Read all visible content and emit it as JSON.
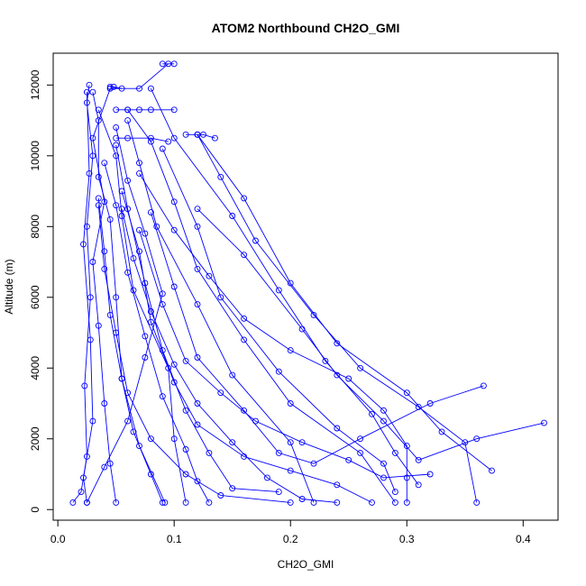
{
  "chart_data": {
    "type": "line",
    "title": "ATOM2 Northbound CH2O_GMI",
    "xlabel": "CH2O_GMI",
    "ylabel": "Altitude (m)",
    "xlim": [
      -0.004,
      0.43
    ],
    "ylim": [
      -300,
      12900
    ],
    "xticks": [
      0.0,
      0.1,
      0.2,
      0.3,
      0.4
    ],
    "xtick_labels": [
      "0.0",
      "0.1",
      "0.2",
      "0.3",
      "0.4"
    ],
    "yticks": [
      0,
      2000,
      4000,
      6000,
      8000,
      10000,
      12000
    ],
    "ytick_labels": [
      "0",
      "2000",
      "4000",
      "6000",
      "8000",
      "10000",
      "12000"
    ],
    "grid": false,
    "legend": "none",
    "marker": "open-circle",
    "color": "#0000ff",
    "series": [
      {
        "points": [
          [
            0.013,
            200
          ],
          [
            0.02,
            500
          ],
          [
            0.025,
            1500
          ],
          [
            0.023,
            3500
          ],
          [
            0.028,
            6000
          ],
          [
            0.025,
            8000
          ],
          [
            0.03,
            10000
          ],
          [
            0.025,
            11500
          ],
          [
            0.027,
            12000
          ]
        ]
      },
      {
        "points": [
          [
            0.025,
            200
          ],
          [
            0.022,
            900
          ],
          [
            0.03,
            2500
          ],
          [
            0.028,
            4800
          ],
          [
            0.022,
            7500
          ],
          [
            0.027,
            9500
          ],
          [
            0.025,
            11800
          ]
        ]
      },
      {
        "points": [
          [
            0.05,
            200
          ],
          [
            0.045,
            1300
          ],
          [
            0.04,
            3000
          ],
          [
            0.035,
            5200
          ],
          [
            0.03,
            7000
          ],
          [
            0.04,
            8700
          ],
          [
            0.03,
            10500
          ],
          [
            0.045,
            11900
          ]
        ]
      },
      {
        "points": [
          [
            0.092,
            200
          ],
          [
            0.07,
            1800
          ],
          [
            0.055,
            3700
          ],
          [
            0.05,
            6000
          ],
          [
            0.045,
            8200
          ],
          [
            0.035,
            9400
          ],
          [
            0.035,
            11000
          ],
          [
            0.03,
            11800
          ]
        ]
      },
      {
        "points": [
          [
            0.11,
            200
          ],
          [
            0.1,
            2000
          ],
          [
            0.095,
            4000
          ],
          [
            0.065,
            6200
          ],
          [
            0.055,
            8300
          ],
          [
            0.05,
            10000
          ],
          [
            0.035,
            11300
          ]
        ]
      },
      {
        "points": [
          [
            0.22,
            200
          ],
          [
            0.2,
            1900
          ],
          [
            0.15,
            3800
          ],
          [
            0.12,
            5800
          ],
          [
            0.085,
            8000
          ],
          [
            0.07,
            9800
          ],
          [
            0.06,
            11000
          ]
        ]
      },
      {
        "points": [
          [
            0.29,
            200
          ],
          [
            0.26,
            1600
          ],
          [
            0.2,
            3000
          ],
          [
            0.16,
            4800
          ],
          [
            0.12,
            6800
          ],
          [
            0.1,
            8700
          ],
          [
            0.08,
            10400
          ],
          [
            0.06,
            11300
          ]
        ]
      },
      {
        "points": [
          [
            0.29,
            500
          ],
          [
            0.28,
            1300
          ],
          [
            0.24,
            2300
          ],
          [
            0.19,
            3900
          ],
          [
            0.14,
            6000
          ],
          [
            0.12,
            8000
          ],
          [
            0.09,
            10200
          ]
        ]
      },
      {
        "points": [
          [
            0.31,
            700
          ],
          [
            0.29,
            1600
          ],
          [
            0.27,
            2700
          ],
          [
            0.23,
            4200
          ],
          [
            0.19,
            6200
          ],
          [
            0.15,
            8300
          ],
          [
            0.1,
            10500
          ],
          [
            0.08,
            11900
          ]
        ]
      },
      {
        "points": [
          [
            0.36,
            200
          ],
          [
            0.35,
            1900
          ],
          [
            0.31,
            2900
          ],
          [
            0.26,
            4000
          ],
          [
            0.22,
            5500
          ],
          [
            0.17,
            7600
          ],
          [
            0.14,
            9400
          ],
          [
            0.12,
            10600
          ]
        ]
      },
      {
        "points": [
          [
            0.373,
            1100
          ],
          [
            0.33,
            2200
          ],
          [
            0.3,
            3300
          ],
          [
            0.24,
            4700
          ],
          [
            0.2,
            6400
          ],
          [
            0.16,
            8800
          ],
          [
            0.12,
            10600
          ]
        ]
      },
      {
        "points": [
          [
            0.418,
            2450
          ],
          [
            0.36,
            2000
          ],
          [
            0.31,
            1400
          ],
          [
            0.28,
            2500
          ],
          [
            0.24,
            3800
          ],
          [
            0.21,
            5100
          ],
          [
            0.16,
            7200
          ],
          [
            0.12,
            8500
          ]
        ]
      },
      {
        "points": [
          [
            0.366,
            3500
          ],
          [
            0.32,
            3000
          ],
          [
            0.26,
            2000
          ],
          [
            0.22,
            1300
          ],
          [
            0.19,
            1600
          ],
          [
            0.16,
            2800
          ],
          [
            0.12,
            4300
          ],
          [
            0.1,
            6300
          ],
          [
            0.08,
            8400
          ]
        ]
      },
      {
        "points": [
          [
            0.13,
            200
          ],
          [
            0.12,
            800
          ],
          [
            0.11,
            1700
          ],
          [
            0.09,
            3200
          ],
          [
            0.075,
            4900
          ],
          [
            0.06,
            6700
          ],
          [
            0.05,
            8600
          ],
          [
            0.04,
            9800
          ]
        ]
      },
      {
        "points": [
          [
            0.27,
            200
          ],
          [
            0.24,
            700
          ],
          [
            0.2,
            1100
          ],
          [
            0.16,
            1500
          ],
          [
            0.12,
            2400
          ],
          [
            0.1,
            3600
          ],
          [
            0.08,
            5300
          ],
          [
            0.07,
            7300
          ],
          [
            0.055,
            9000
          ]
        ]
      },
      {
        "points": [
          [
            0.19,
            500
          ],
          [
            0.15,
            600
          ],
          [
            0.13,
            1600
          ],
          [
            0.11,
            2800
          ],
          [
            0.09,
            4500
          ],
          [
            0.075,
            6400
          ],
          [
            0.06,
            8500
          ],
          [
            0.05,
            10300
          ]
        ]
      },
      {
        "points": [
          [
            0.32,
            1000
          ],
          [
            0.28,
            900
          ],
          [
            0.25,
            1400
          ],
          [
            0.21,
            1900
          ],
          [
            0.17,
            2500
          ],
          [
            0.14,
            3300
          ],
          [
            0.11,
            4200
          ],
          [
            0.09,
            5800
          ],
          [
            0.07,
            7900
          ]
        ]
      },
      {
        "points": [
          [
            0.24,
            200
          ],
          [
            0.21,
            300
          ],
          [
            0.18,
            900
          ],
          [
            0.15,
            1900
          ],
          [
            0.12,
            3000
          ],
          [
            0.1,
            4100
          ],
          [
            0.08,
            5600
          ],
          [
            0.065,
            7100
          ],
          [
            0.055,
            8500
          ]
        ]
      },
      {
        "points": [
          [
            0.09,
            200
          ],
          [
            0.08,
            1000
          ],
          [
            0.065,
            2200
          ],
          [
            0.055,
            3700
          ],
          [
            0.045,
            5500
          ],
          [
            0.04,
            7300
          ],
          [
            0.035,
            8800
          ]
        ]
      },
      {
        "points": [
          [
            0.025,
            200
          ],
          [
            0.04,
            1200
          ],
          [
            0.06,
            2500
          ],
          [
            0.075,
            4300
          ],
          [
            0.09,
            6100
          ],
          [
            0.075,
            7800
          ],
          [
            0.06,
            9300
          ],
          [
            0.05,
            10800
          ]
        ]
      },
      {
        "points": [
          [
            0.2,
            200
          ],
          [
            0.14,
            400
          ],
          [
            0.11,
            1000
          ],
          [
            0.08,
            2000
          ],
          [
            0.06,
            3300
          ],
          [
            0.05,
            5000
          ],
          [
            0.04,
            6800
          ],
          [
            0.035,
            8600
          ]
        ]
      },
      {
        "points": [
          [
            0.3,
            200
          ],
          [
            0.3,
            900
          ],
          [
            0.3,
            1800
          ],
          [
            0.28,
            2800
          ],
          [
            0.25,
            3700
          ],
          [
            0.2,
            4500
          ],
          [
            0.16,
            5400
          ],
          [
            0.13,
            6600
          ],
          [
            0.1,
            7900
          ],
          [
            0.07,
            9500
          ]
        ]
      },
      {
        "points": [
          [
            0.05,
            11300
          ],
          [
            0.06,
            11300
          ],
          [
            0.07,
            11300
          ],
          [
            0.08,
            11300
          ],
          [
            0.1,
            11300
          ]
        ]
      },
      {
        "points": [
          [
            0.05,
            10500
          ],
          [
            0.06,
            10500
          ],
          [
            0.08,
            10500
          ],
          [
            0.095,
            10400
          ]
        ]
      },
      {
        "points": [
          [
            0.11,
            10600
          ],
          [
            0.12,
            10600
          ],
          [
            0.125,
            10600
          ],
          [
            0.135,
            10500
          ]
        ]
      },
      {
        "points": [
          [
            0.09,
            12600
          ],
          [
            0.1,
            12600
          ],
          [
            0.095,
            12600
          ],
          [
            0.07,
            11900
          ],
          [
            0.045,
            11900
          ]
        ]
      },
      {
        "points": [
          [
            0.048,
            11950
          ],
          [
            0.055,
            11900
          ],
          [
            0.045,
            11950
          ]
        ]
      }
    ]
  }
}
